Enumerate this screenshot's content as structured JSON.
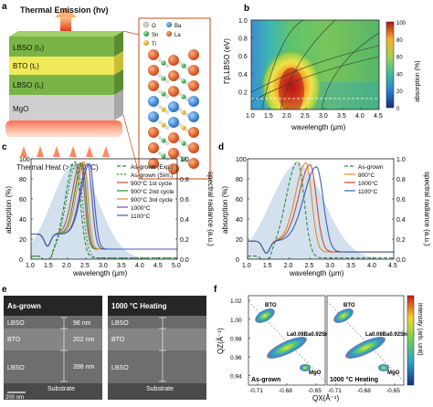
{
  "panels": {
    "a": {
      "label": "a",
      "title_emission": "Thermal Emission (hν)",
      "layers": [
        "LBSO (t₂)",
        "BTO (t₁)",
        "LBSO (t₁)",
        "MgO"
      ],
      "legend": [
        "O",
        "Ba",
        "Sn",
        "La",
        "Ti"
      ],
      "heat_label": "Thermal Heat (>1000 °C)"
    },
    "b": {
      "label": "b",
      "ylabel": "Γβ,LBSO (eV)",
      "xlabel": "wavelength (μm)",
      "colorbar_label": "absorption (%)",
      "colorbar_ticks": [
        "100",
        "80",
        "60",
        "40",
        "20",
        "0"
      ]
    },
    "c": {
      "label": "c",
      "ylabel": "absorption (%)",
      "ylabel_right": "spectral radiance (a.u.)",
      "xlabel": "wavelength (μm)",
      "legend": [
        {
          "name": "As-grown (Exp.)",
          "color": "#2e8b3a",
          "dash": "4,2"
        },
        {
          "name": "As-grown (Sim.)",
          "color": "#2e8b3a",
          "dash": "2,2"
        },
        {
          "name": "900°C 1st cycle",
          "color": "#c64b3a",
          "dash": "0"
        },
        {
          "name": "900°C 2nd cycle",
          "color": "#2e8b3a",
          "dash": "0"
        },
        {
          "name": "900°C 3rd cycle",
          "color": "#e08a2e",
          "dash": "0"
        },
        {
          "name": "1000°C",
          "color": "#6d4ea6",
          "dash": "0"
        },
        {
          "name": "1100°C",
          "color": "#3a5fb5",
          "dash": "0"
        }
      ]
    },
    "d": {
      "label": "d",
      "ylabel": "absorption (%)",
      "ylabel_right": "spectral radiance (a.u.)",
      "xlabel": "wavelength (μm)",
      "legend": [
        {
          "name": "As-grown",
          "color": "#2e8b3a",
          "dash": "4,2"
        },
        {
          "name": "900°C",
          "color": "#e08a2e",
          "dash": "0"
        },
        {
          "name": "1000°C",
          "color": "#c64b3a",
          "dash": "0"
        },
        {
          "name": "1100°C",
          "color": "#3a5fb5",
          "dash": "0"
        }
      ]
    },
    "e": {
      "label": "e",
      "left_title": "As-grown",
      "right_title": "1000 °C Heating",
      "layer_names": [
        "LBSO",
        "BTO",
        "LBSO",
        "Substrate"
      ],
      "thickness": [
        "96 nm",
        "202 nm",
        "398 nm"
      ],
      "scalebar": "200 nm"
    },
    "f": {
      "label": "f",
      "ylabel": "QZ(Å⁻¹)",
      "xlabel": "QX(Å⁻¹)",
      "colorbar_label": "intensity (arb. unit)",
      "left_title": "As-grown",
      "right_title": "1000 °C Heating",
      "labels": [
        "BTO",
        "La0.08Ba0.92SnO3",
        "MgO"
      ]
    }
  },
  "chart_data": [
    {
      "type": "heatmap",
      "panel": "b",
      "xlabel": "wavelength (μm)",
      "ylabel": "Γβ,LBSO (eV)",
      "xlim": [
        1.0,
        4.5
      ],
      "ylim": [
        0,
        1.0
      ],
      "x_ticks": [
        1.0,
        1.5,
        2.0,
        2.5,
        3.0,
        3.5,
        4.0,
        4.5
      ],
      "y_ticks": [
        0.2,
        0.4,
        0.6,
        0.8,
        1.0
      ],
      "colorbar_range": [
        0,
        100
      ],
      "peak": {
        "x": 2.1,
        "y": 0.15,
        "value": 100
      }
    },
    {
      "type": "line",
      "panel": "c",
      "xlabel": "wavelength (μm)",
      "ylabel": "absorption (%)",
      "ylabel_right": "spectral radiance (a.u.)",
      "xlim": [
        1.0,
        5.0
      ],
      "ylim": [
        0,
        100
      ],
      "y2lim": [
        0,
        1.0
      ],
      "x_ticks": [
        1.0,
        1.5,
        2.0,
        2.5,
        3.0,
        3.5,
        4.0,
        4.5,
        5.0
      ],
      "y_ticks": [
        0,
        20,
        40,
        60,
        80,
        100
      ],
      "y2_ticks": [
        0.0,
        0.2,
        0.4,
        0.6,
        0.8,
        1.0
      ],
      "series": [
        {
          "name": "As-grown (Exp.)",
          "peak_x": 2.2,
          "peak_y": 97,
          "width": 0.38,
          "base": 3
        },
        {
          "name": "As-grown (Sim.)",
          "peak_x": 2.25,
          "peak_y": 95,
          "width": 0.4,
          "base": 3
        },
        {
          "name": "900°C 1st cycle",
          "peak_x": 2.35,
          "peak_y": 96,
          "width": 0.3,
          "base": 25
        },
        {
          "name": "900°C 2nd cycle",
          "peak_x": 2.4,
          "peak_y": 96,
          "width": 0.28,
          "base": 25
        },
        {
          "name": "900°C 3rd cycle",
          "peak_x": 2.45,
          "peak_y": 97,
          "width": 0.28,
          "base": 25
        },
        {
          "name": "1000°C",
          "peak_x": 2.55,
          "peak_y": 95,
          "width": 0.3,
          "base": 25
        },
        {
          "name": "1100°C",
          "peak_x": 2.6,
          "peak_y": 95,
          "width": 0.32,
          "base": 25
        }
      ]
    },
    {
      "type": "line",
      "panel": "d",
      "xlabel": "wavelength (μm)",
      "ylabel": "absorption (%)",
      "ylabel_right": "spectral radiance (a.u.)",
      "xlim": [
        1.0,
        4.5
      ],
      "ylim": [
        0,
        100
      ],
      "y2lim": [
        0,
        1.0
      ],
      "x_ticks": [
        1.0,
        1.5,
        2.0,
        2.5,
        3.0,
        3.5,
        4.0,
        4.5
      ],
      "y_ticks": [
        0,
        20,
        40,
        60,
        80,
        100
      ],
      "y2_ticks": [
        0.0,
        0.2,
        0.4,
        0.6,
        0.8,
        1.0
      ],
      "series": [
        {
          "name": "As-grown",
          "peak_x": 2.2,
          "peak_y": 97,
          "width": 0.4,
          "base": 3
        },
        {
          "name": "900°C",
          "peak_x": 2.4,
          "peak_y": 96,
          "width": 0.35,
          "base": 18
        },
        {
          "name": "1000°C",
          "peak_x": 2.5,
          "peak_y": 94,
          "width": 0.38,
          "base": 18
        },
        {
          "name": "1100°C",
          "peak_x": 2.65,
          "peak_y": 92,
          "width": 0.42,
          "base": 18
        }
      ]
    },
    {
      "type": "heatmap",
      "panel": "f",
      "xlabel": "QX(Å⁻¹)",
      "ylabel": "QZ(Å⁻¹)",
      "x_ticks": [
        -0.71,
        -0.68,
        -0.65
      ],
      "y_ticks": [
        0.94,
        0.96,
        0.98,
        1.0,
        1.02
      ],
      "ylim": [
        0.93,
        1.025
      ]
    }
  ]
}
